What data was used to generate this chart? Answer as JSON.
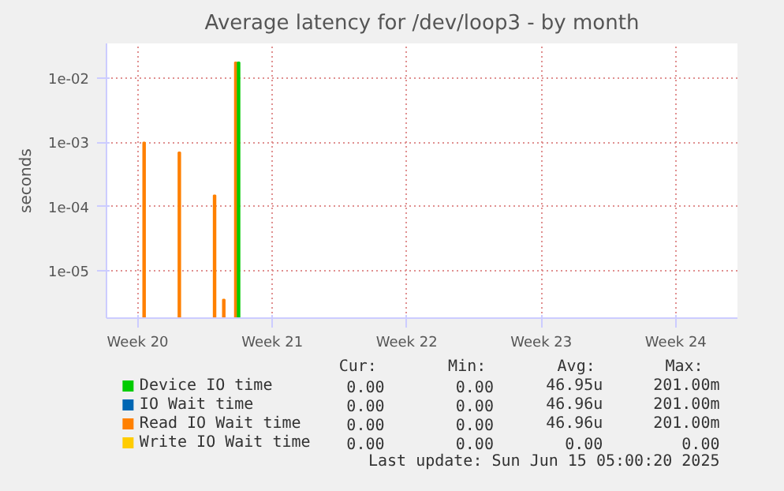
{
  "chart_data": {
    "type": "bar",
    "title": "Average latency for /dev/loop3 - by month",
    "ylabel": "seconds",
    "log": "y",
    "grid": true,
    "legend": "bottom",
    "xlim": [
      "2025-05-13T09:00",
      "2025-06-15T05:00"
    ],
    "xticks": [
      {
        "value": "2025-05-15",
        "label": "Week 20"
      },
      {
        "value": "2025-05-22",
        "label": "Week 21"
      },
      {
        "value": "2025-05-29",
        "label": "Week 22"
      },
      {
        "value": "2025-06-05",
        "label": "Week 23"
      },
      {
        "value": "2025-06-12",
        "label": "Week 24"
      }
    ],
    "ylim": [
      1.86e-06,
      0.0345
    ],
    "yticks": [
      {
        "value": 1e-05,
        "label": "1e-05"
      },
      {
        "value": 0.0001,
        "label": "1e-04"
      },
      {
        "value": 0.001,
        "label": "1e-03"
      },
      {
        "value": 0.01,
        "label": "1e-02"
      }
    ],
    "x": [
      "2025-05-15T08:00",
      "2025-05-17T04:00",
      "2025-05-19T00:00",
      "2025-05-19T11:30",
      "2025-05-20T02:30"
    ],
    "series": [
      {
        "name": "Device IO time",
        "color": "#00cc00",
        "x": [
          "2025-05-20T06:00"
        ],
        "values": [
          0.0175
        ]
      },
      {
        "name": "IO Wait time",
        "color": "#0066b3",
        "values": [
          null,
          null,
          null,
          null,
          null
        ]
      },
      {
        "name": "Read IO Wait time",
        "color": "#ff8000",
        "values": [
          0.001,
          0.0007,
          0.00015,
          3.6e-06,
          0.0175
        ]
      },
      {
        "name": "Write IO Wait time",
        "color": "#ffcc00",
        "values": [
          null,
          null,
          null,
          null,
          null
        ]
      }
    ],
    "annotations": [
      "Cur:",
      "Min:",
      "Avg:",
      "Max:",
      "0.00",
      "0.00",
      "46.95u",
      "201.00m",
      "0.00",
      "0.00",
      "46.96u",
      "201.00m",
      "0.00",
      "0.00",
      "46.96u",
      "201.00m",
      "0.00",
      "0.00",
      "0.00",
      "0.00",
      "Last update: Sun Jun 15 05:00:20 2025"
    ]
  }
}
